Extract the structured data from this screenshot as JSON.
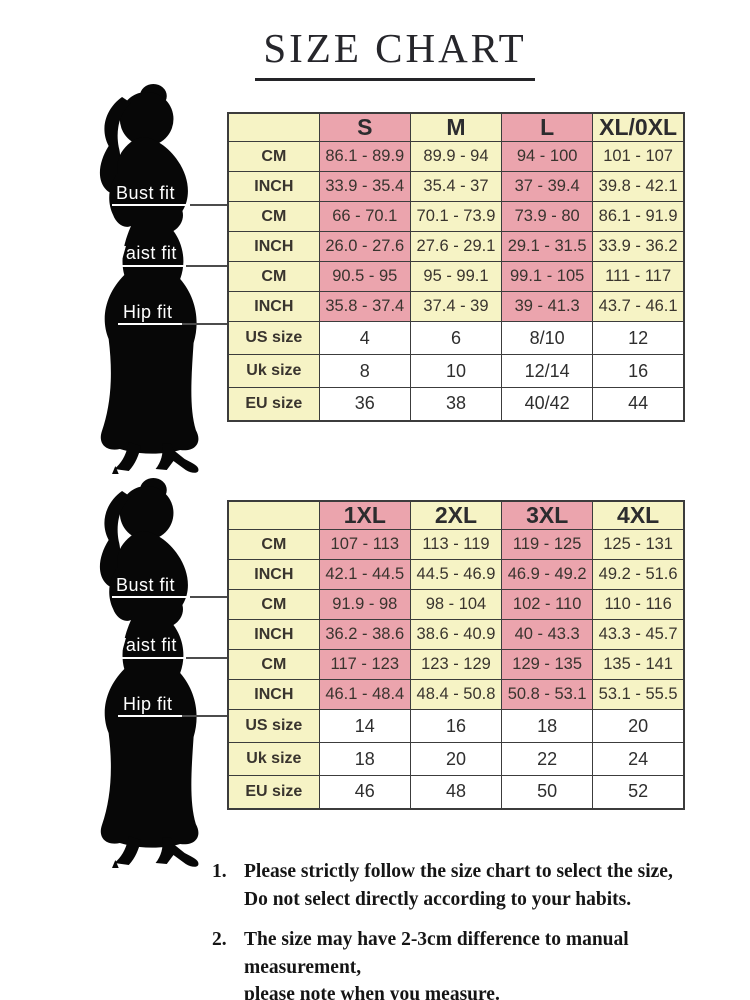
{
  "title": "SIZE CHART",
  "colors": {
    "pink": "#eba4ad",
    "yellow": "#f6f3c5",
    "white_cell": "#ffffff",
    "border": "#3c3c3c",
    "table_text": "#39342e",
    "silhouette": "#070707"
  },
  "fit_labels": [
    "Bust fit",
    "Waist fit",
    "Hip fit"
  ],
  "chart_data": [
    {
      "type": "table",
      "name": "size chart S to XL/0XL",
      "columns": [
        "S",
        "M",
        "L",
        "XL/0XL"
      ],
      "rows": [
        {
          "group": "Bust fit",
          "label": "CM",
          "values": [
            "86.1 - 89.9",
            "89.9 - 94",
            "94 - 100",
            "101 - 107"
          ]
        },
        {
          "group": "Bust fit",
          "label": "INCH",
          "values": [
            "33.9 - 35.4",
            "35.4 - 37",
            "37 - 39.4",
            "39.8 - 42.1"
          ]
        },
        {
          "group": "Waist fit",
          "label": "CM",
          "values": [
            "66 - 70.1",
            "70.1 - 73.9",
            "73.9 - 80",
            "86.1 - 91.9"
          ]
        },
        {
          "group": "Waist fit",
          "label": "INCH",
          "values": [
            "26.0 - 27.6",
            "27.6 - 29.1",
            "29.1 - 31.5",
            "33.9 - 36.2"
          ]
        },
        {
          "group": "Hip fit",
          "label": "CM",
          "values": [
            "90.5 - 95",
            "95 - 99.1",
            "99.1 - 105",
            "111 - 117"
          ]
        },
        {
          "group": "Hip fit",
          "label": "INCH",
          "values": [
            "35.8 - 37.4",
            "37.4 - 39",
            "39 - 41.3",
            "43.7 - 46.1"
          ]
        },
        {
          "label": "US size",
          "plain": true,
          "values": [
            "4",
            "6",
            "8/10",
            "12"
          ]
        },
        {
          "label": "Uk size",
          "plain": true,
          "values": [
            "8",
            "10",
            "12/14",
            "16"
          ]
        },
        {
          "label": "EU size",
          "plain": true,
          "values": [
            "36",
            "38",
            "40/42",
            "44"
          ]
        }
      ]
    },
    {
      "type": "table",
      "name": "size chart 1XL to 4XL",
      "columns": [
        "1XL",
        "2XL",
        "3XL",
        "4XL"
      ],
      "rows": [
        {
          "group": "Bust fit",
          "label": "CM",
          "values": [
            "107 - 113",
            "113 - 119",
            "119 - 125",
            "125 - 131"
          ]
        },
        {
          "group": "Bust fit",
          "label": "INCH",
          "values": [
            "42.1 - 44.5",
            "44.5 - 46.9",
            "46.9 - 49.2",
            "49.2 - 51.6"
          ]
        },
        {
          "group": "Waist fit",
          "label": "CM",
          "values": [
            "91.9 - 98",
            "98 - 104",
            "102 - 110",
            "110 - 116"
          ]
        },
        {
          "group": "Waist fit",
          "label": "INCH",
          "values": [
            "36.2 - 38.6",
            "38.6 - 40.9",
            "40 - 43.3",
            "43.3 - 45.7"
          ]
        },
        {
          "group": "Hip fit",
          "label": "CM",
          "values": [
            "117 - 123",
            "123 - 129",
            "129 - 135",
            "135 - 141"
          ]
        },
        {
          "group": "Hip fit",
          "label": "INCH",
          "values": [
            "46.1 - 48.4",
            "48.4 - 50.8",
            "50.8 - 53.1",
            "53.1 - 55.5"
          ]
        },
        {
          "label": "US size",
          "plain": true,
          "values": [
            "14",
            "16",
            "18",
            "20"
          ]
        },
        {
          "label": "Uk size",
          "plain": true,
          "values": [
            "18",
            "20",
            "22",
            "24"
          ]
        },
        {
          "label": "EU size",
          "plain": true,
          "values": [
            "46",
            "48",
            "50",
            "52"
          ]
        }
      ]
    }
  ],
  "notes": [
    {
      "num": "1.",
      "line1": "Please strictly follow the size chart to select the size,",
      "line2": "Do not select directly according to your habits."
    },
    {
      "num": "2.",
      "line1": "The size may have 2-3cm difference  to manual measurement,",
      "line2": "please note when you measure."
    }
  ]
}
